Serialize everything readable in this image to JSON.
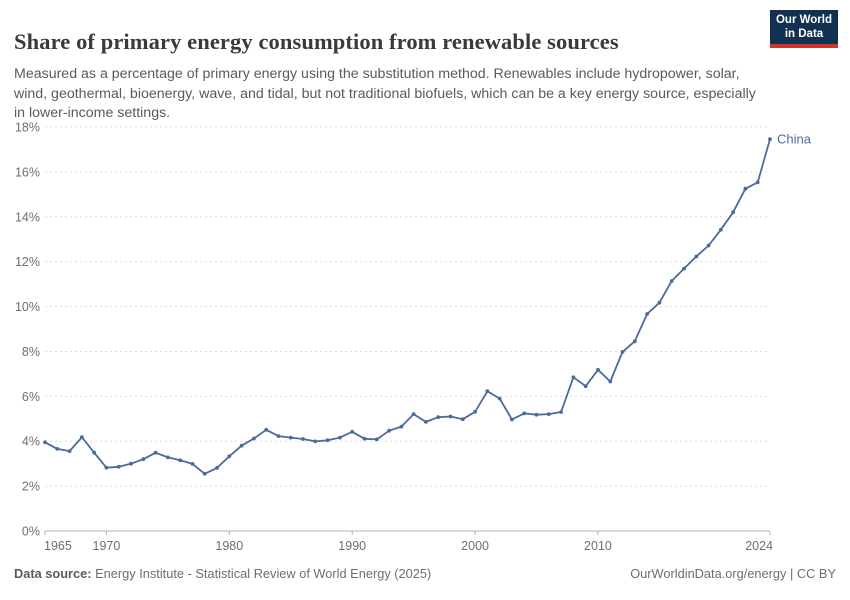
{
  "header": {
    "title": "Share of primary energy consumption from renewable sources",
    "subtitle": "Measured as a percentage of primary energy using the substitution method. Renewables include hydropower, solar, wind, geothermal, bioenergy, wave, and tidal, but not traditional biofuels, which can be a key energy source, especially in lower-income settings."
  },
  "logo": {
    "line1": "Our World",
    "line2": "in Data",
    "bg_color": "#12304f",
    "accent_color": "#d1342a"
  },
  "chart_data": {
    "type": "line",
    "title": "Share of primary energy consumption from renewable sources",
    "xlabel": "",
    "ylabel": "",
    "ylim": [
      0,
      18
    ],
    "ytick_step": 2,
    "ytick_suffix": "%",
    "xticks": [
      1965,
      1970,
      1980,
      1990,
      2000,
      2010,
      2024
    ],
    "grid": "horizontal-dashed",
    "legend_position": "end-of-line-label",
    "series": [
      {
        "name": "China",
        "color": "#4C6A9C",
        "x": [
          1965,
          1966,
          1967,
          1968,
          1969,
          1970,
          1971,
          1972,
          1973,
          1974,
          1975,
          1976,
          1977,
          1978,
          1979,
          1980,
          1981,
          1982,
          1983,
          1984,
          1985,
          1986,
          1987,
          1988,
          1989,
          1990,
          1991,
          1992,
          1993,
          1994,
          1995,
          1996,
          1997,
          1998,
          1999,
          2000,
          2001,
          2002,
          2003,
          2004,
          2005,
          2006,
          2007,
          2008,
          2009,
          2010,
          2011,
          2012,
          2013,
          2014,
          2015,
          2016,
          2017,
          2018,
          2019,
          2020,
          2021,
          2022,
          2023,
          2024
        ],
        "values": [
          3.95,
          3.66,
          3.56,
          4.18,
          3.49,
          2.82,
          2.86,
          3.0,
          3.2,
          3.49,
          3.28,
          3.15,
          2.99,
          2.55,
          2.81,
          3.33,
          3.8,
          4.12,
          4.51,
          4.23,
          4.16,
          4.1,
          3.99,
          4.04,
          4.16,
          4.42,
          4.11,
          4.08,
          4.47,
          4.65,
          5.21,
          4.86,
          5.07,
          5.1,
          4.98,
          5.31,
          6.23,
          5.9,
          4.97,
          5.24,
          5.18,
          5.21,
          5.3,
          6.85,
          6.45,
          7.18,
          6.66,
          7.98,
          8.45,
          9.67,
          10.17,
          11.14,
          11.69,
          12.23,
          12.72,
          13.42,
          14.2,
          15.25,
          15.53,
          17.46
        ]
      }
    ]
  },
  "style": {
    "grid_color": "#dcdcdc",
    "axis_color": "#b3b3b3",
    "tick_label_color": "#6e6e73"
  },
  "footer": {
    "source_label": "Data source:",
    "source_text": " Energy Institute - Statistical Review of World Energy (2025)",
    "credit": "OurWorldinData.org/energy | CC BY"
  }
}
